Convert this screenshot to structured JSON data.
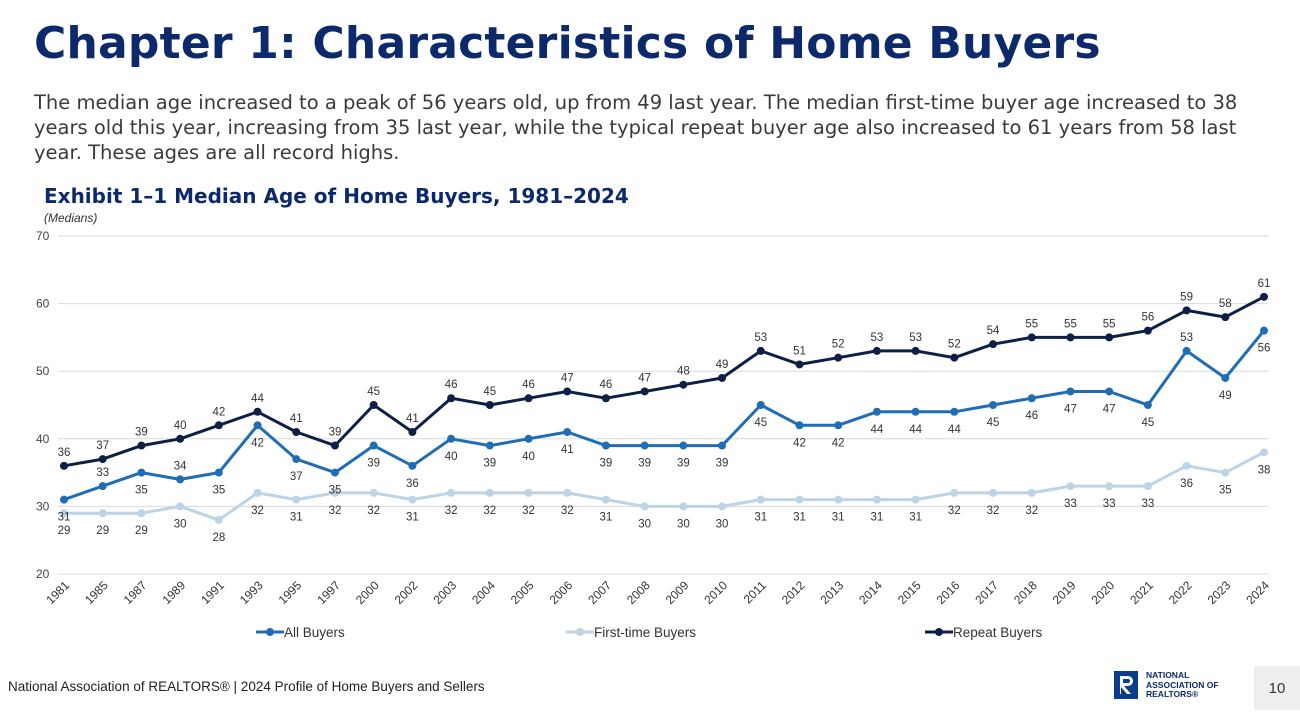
{
  "page": {
    "title": "Chapter 1: Characteristics of Home Buyers",
    "intro": "The median age increased to a peak of 56 years old, up from 49 last year. The median first-time buyer age increased to 38 years old this year, increasing from 35 last year, while the typical repeat buyer age also increased to 61 years from 58 last year. These ages are all record highs.",
    "footer": "National Association of REALTORS® | 2024 Profile of Home Buyers and Sellers",
    "page_number": "10",
    "logo_text": [
      "NATIONAL",
      "ASSOCIATION OF",
      "REALTORS®"
    ]
  },
  "colors": {
    "title": "#0c2a6b",
    "all_buyers": "#1f6db5",
    "first_time": "#bcd4e6",
    "repeat": "#0e1f45",
    "grid": "#d9d9d9"
  },
  "chart_data": {
    "type": "line",
    "title": "Exhibit 1–1 Median Age of Home Buyers, 1981–2024",
    "subtitle": "(Medians)",
    "xlabel": "",
    "ylabel": "",
    "ylim": [
      20,
      70
    ],
    "yticks": [
      20,
      30,
      40,
      50,
      60,
      70
    ],
    "grid": true,
    "legend_position": "bottom",
    "categories": [
      "1981",
      "1985",
      "1987",
      "1989",
      "1991",
      "1993",
      "1995",
      "1997",
      "2000",
      "2002",
      "2003",
      "2004",
      "2005",
      "2006",
      "2007",
      "2008",
      "2009",
      "2010",
      "2011",
      "2012",
      "2013",
      "2014",
      "2015",
      "2016",
      "2017",
      "2018",
      "2019",
      "2020",
      "2021",
      "2022",
      "2023",
      "2024"
    ],
    "series": [
      {
        "name": "All Buyers",
        "values": [
          31,
          33,
          35,
          34,
          35,
          42,
          37,
          35,
          39,
          36,
          40,
          39,
          40,
          41,
          39,
          39,
          39,
          39,
          45,
          42,
          42,
          44,
          44,
          44,
          45,
          46,
          47,
          47,
          45,
          53,
          49,
          56
        ]
      },
      {
        "name": "First-time Buyers",
        "values": [
          29,
          29,
          29,
          30,
          28,
          32,
          31,
          32,
          32,
          31,
          32,
          32,
          32,
          32,
          31,
          30,
          30,
          30,
          31,
          31,
          31,
          31,
          31,
          32,
          32,
          32,
          33,
          33,
          33,
          36,
          35,
          38
        ]
      },
      {
        "name": "Repeat Buyers",
        "values": [
          36,
          37,
          39,
          40,
          42,
          44,
          41,
          39,
          45,
          41,
          46,
          45,
          46,
          47,
          46,
          47,
          48,
          49,
          53,
          51,
          52,
          53,
          53,
          52,
          54,
          55,
          55,
          55,
          56,
          59,
          58,
          61
        ]
      }
    ]
  }
}
